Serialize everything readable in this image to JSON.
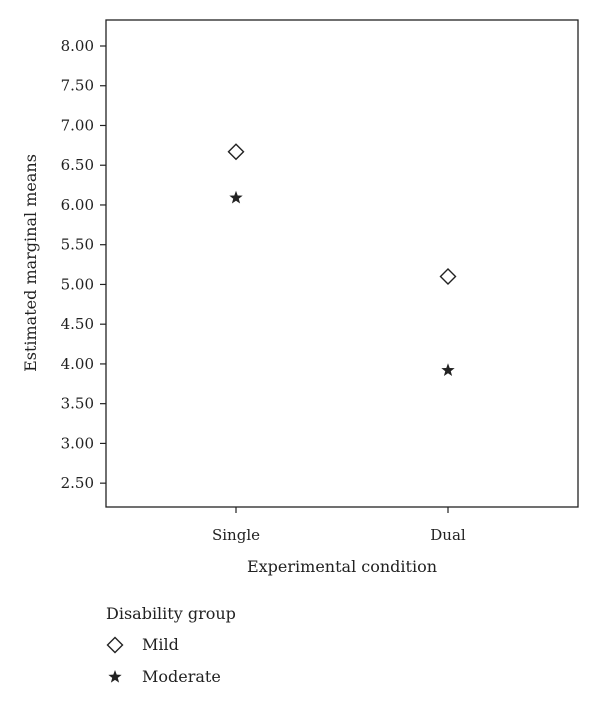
{
  "chart_data": {
    "type": "scatter",
    "title": "",
    "xlabel": "Experimental condition",
    "ylabel": "Estimated marginal means",
    "categories": [
      "Single",
      "Dual"
    ],
    "ylim": [
      2.2,
      8.0
    ],
    "yticks": [
      "2.50",
      "3.00",
      "3.50",
      "4.00",
      "4.50",
      "5.00",
      "5.50",
      "6.00",
      "6.50",
      "7.00",
      "7.50",
      "8.00"
    ],
    "grid": false,
    "legend": {
      "title": "Disability group",
      "placement": "bottom-left"
    },
    "series": [
      {
        "name": "Mild",
        "marker": "diamond",
        "values": [
          6.67,
          5.1
        ]
      },
      {
        "name": "Moderate",
        "marker": "star",
        "values": [
          6.09,
          3.92
        ]
      }
    ]
  },
  "colors": {
    "ink": "#222222"
  }
}
